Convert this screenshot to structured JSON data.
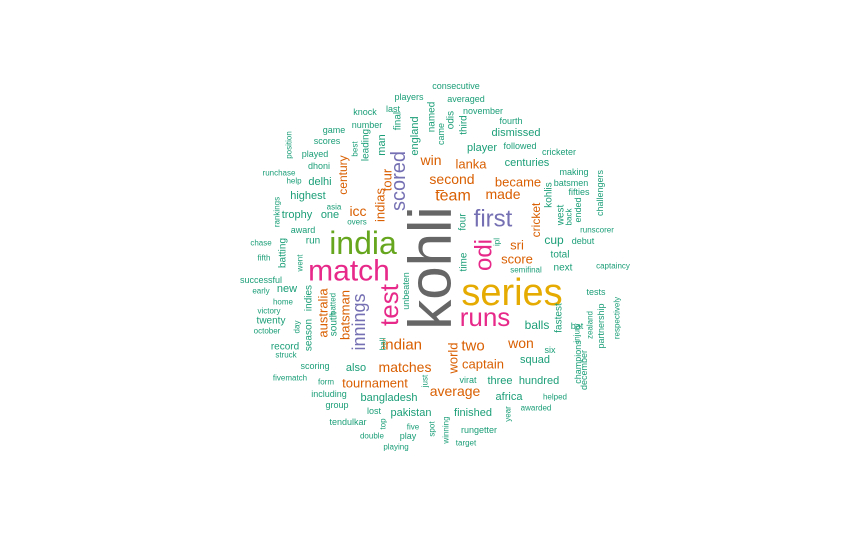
{
  "palette": {
    "gray": "#666666",
    "gold": "#e6ab02",
    "magenta": "#e7298a",
    "green": "#66a61e",
    "purple": "#7570b3",
    "orange": "#d95f02",
    "teal": "#1b9e77"
  },
  "words": [
    {
      "text": "kohli",
      "color": "gray"
    },
    {
      "text": "series",
      "color": "gold"
    },
    {
      "text": "india",
      "color": "green"
    },
    {
      "text": "match",
      "color": "magenta"
    },
    {
      "text": "runs",
      "color": "magenta"
    },
    {
      "text": "test",
      "color": "magenta"
    },
    {
      "text": "first",
      "color": "purple"
    },
    {
      "text": "odi",
      "color": "magenta"
    },
    {
      "text": "scored",
      "color": "purple"
    },
    {
      "text": "innings",
      "color": "purple"
    },
    {
      "text": "indian",
      "color": "orange"
    },
    {
      "text": "matches",
      "color": "orange"
    },
    {
      "text": "team",
      "color": "orange"
    },
    {
      "text": "second",
      "color": "orange"
    },
    {
      "text": "average",
      "color": "orange"
    },
    {
      "text": "tournament",
      "color": "orange"
    },
    {
      "text": "captain",
      "color": "orange"
    },
    {
      "text": "two",
      "color": "orange"
    },
    {
      "text": "won",
      "color": "orange"
    },
    {
      "text": "score",
      "color": "orange"
    },
    {
      "text": "made",
      "color": "orange"
    },
    {
      "text": "became",
      "color": "orange"
    },
    {
      "text": "lanka",
      "color": "orange"
    },
    {
      "text": "win",
      "color": "orange"
    },
    {
      "text": "sri",
      "color": "orange"
    },
    {
      "text": "icc",
      "color": "orange"
    },
    {
      "text": "tour",
      "color": "orange"
    },
    {
      "text": "indias",
      "color": "orange"
    },
    {
      "text": "batsman",
      "color": "orange"
    },
    {
      "text": "australia",
      "color": "orange"
    },
    {
      "text": "world",
      "color": "orange"
    },
    {
      "text": "cricket",
      "color": "orange"
    },
    {
      "text": "century",
      "color": "orange"
    },
    {
      "text": "cup",
      "color": "teal"
    },
    {
      "text": "balls",
      "color": "teal"
    },
    {
      "text": "squad",
      "color": "teal"
    },
    {
      "text": "hundred",
      "color": "teal"
    },
    {
      "text": "three",
      "color": "teal"
    },
    {
      "text": "africa",
      "color": "teal"
    },
    {
      "text": "finished",
      "color": "teal"
    },
    {
      "text": "pakistan",
      "color": "teal"
    },
    {
      "text": "bangladesh",
      "color": "teal"
    },
    {
      "text": "also",
      "color": "teal"
    },
    {
      "text": "centuries",
      "color": "teal"
    },
    {
      "text": "dismissed",
      "color": "teal"
    },
    {
      "text": "player",
      "color": "teal"
    },
    {
      "text": "england",
      "color": "teal"
    },
    {
      "text": "man",
      "color": "teal"
    },
    {
      "text": "leading",
      "color": "teal"
    },
    {
      "text": "highest",
      "color": "teal"
    },
    {
      "text": "delhi",
      "color": "teal"
    },
    {
      "text": "trophy",
      "color": "teal"
    },
    {
      "text": "one",
      "color": "teal"
    },
    {
      "text": "run",
      "color": "teal"
    },
    {
      "text": "batting",
      "color": "teal"
    },
    {
      "text": "new",
      "color": "teal"
    },
    {
      "text": "twenty",
      "color": "teal"
    },
    {
      "text": "record",
      "color": "teal"
    },
    {
      "text": "indies",
      "color": "teal"
    },
    {
      "text": "south",
      "color": "teal"
    },
    {
      "text": "season",
      "color": "teal"
    },
    {
      "text": "kohlis",
      "color": "teal"
    },
    {
      "text": "west",
      "color": "teal"
    },
    {
      "text": "fastest",
      "color": "teal"
    },
    {
      "text": "next",
      "color": "teal"
    },
    {
      "text": "total",
      "color": "teal"
    },
    {
      "text": "debut",
      "color": "teal"
    },
    {
      "text": "time",
      "color": "teal"
    },
    {
      "text": "four",
      "color": "teal"
    },
    {
      "text": "final",
      "color": "teal"
    },
    {
      "text": "named",
      "color": "teal"
    },
    {
      "text": "odis",
      "color": "teal"
    },
    {
      "text": "third",
      "color": "teal"
    },
    {
      "text": "came",
      "color": "teal"
    },
    {
      "text": "scores",
      "color": "teal"
    },
    {
      "text": "game",
      "color": "teal"
    },
    {
      "text": "number",
      "color": "teal"
    },
    {
      "text": "knock",
      "color": "teal"
    },
    {
      "text": "last",
      "color": "teal"
    },
    {
      "text": "players",
      "color": "teal"
    },
    {
      "text": "consecutive",
      "color": "teal"
    },
    {
      "text": "averaged",
      "color": "teal"
    },
    {
      "text": "november",
      "color": "teal"
    },
    {
      "text": "fourth",
      "color": "teal"
    },
    {
      "text": "followed",
      "color": "teal"
    },
    {
      "text": "cricketer",
      "color": "teal"
    },
    {
      "text": "making",
      "color": "teal"
    },
    {
      "text": "batsmen",
      "color": "teal"
    },
    {
      "text": "fifties",
      "color": "teal"
    },
    {
      "text": "challengers",
      "color": "teal"
    },
    {
      "text": "runscorer",
      "color": "teal"
    },
    {
      "text": "captaincy",
      "color": "teal"
    },
    {
      "text": "semifinal",
      "color": "teal"
    },
    {
      "text": "tests",
      "color": "teal"
    },
    {
      "text": "partnership",
      "color": "teal"
    },
    {
      "text": "respectively",
      "color": "teal"
    },
    {
      "text": "injury",
      "color": "teal"
    },
    {
      "text": "zealand",
      "color": "teal"
    },
    {
      "text": "champions",
      "color": "teal"
    },
    {
      "text": "december",
      "color": "teal"
    },
    {
      "text": "six",
      "color": "teal"
    },
    {
      "text": "bat",
      "color": "teal"
    },
    {
      "text": "ended",
      "color": "teal"
    },
    {
      "text": "back",
      "color": "teal"
    },
    {
      "text": "ipl",
      "color": "teal"
    },
    {
      "text": "best",
      "color": "teal"
    },
    {
      "text": "played",
      "color": "teal"
    },
    {
      "text": "dhoni",
      "color": "teal"
    },
    {
      "text": "position",
      "color": "teal"
    },
    {
      "text": "runchase",
      "color": "teal"
    },
    {
      "text": "help",
      "color": "teal"
    },
    {
      "text": "asia",
      "color": "teal"
    },
    {
      "text": "overs",
      "color": "teal"
    },
    {
      "text": "rankings",
      "color": "teal"
    },
    {
      "text": "award",
      "color": "teal"
    },
    {
      "text": "chase",
      "color": "teal"
    },
    {
      "text": "fifth",
      "color": "teal"
    },
    {
      "text": "successful",
      "color": "teal"
    },
    {
      "text": "early",
      "color": "teal"
    },
    {
      "text": "home",
      "color": "teal"
    },
    {
      "text": "victory",
      "color": "teal"
    },
    {
      "text": "day",
      "color": "teal"
    },
    {
      "text": "october",
      "color": "teal"
    },
    {
      "text": "struck",
      "color": "teal"
    },
    {
      "text": "went",
      "color": "teal"
    },
    {
      "text": "batted",
      "color": "teal"
    },
    {
      "text": "unbeaten",
      "color": "teal"
    },
    {
      "text": "ball",
      "color": "teal"
    },
    {
      "text": "scoring",
      "color": "teal"
    },
    {
      "text": "fivematch",
      "color": "teal"
    },
    {
      "text": "form",
      "color": "teal"
    },
    {
      "text": "including",
      "color": "teal"
    },
    {
      "text": "group",
      "color": "teal"
    },
    {
      "text": "lost",
      "color": "teal"
    },
    {
      "text": "tendulkar",
      "color": "teal"
    },
    {
      "text": "top",
      "color": "teal"
    },
    {
      "text": "double",
      "color": "teal"
    },
    {
      "text": "playing",
      "color": "teal"
    },
    {
      "text": "play",
      "color": "teal"
    },
    {
      "text": "five",
      "color": "teal"
    },
    {
      "text": "spot",
      "color": "teal"
    },
    {
      "text": "winning",
      "color": "teal"
    },
    {
      "text": "rungetter",
      "color": "teal"
    },
    {
      "text": "target",
      "color": "teal"
    },
    {
      "text": "year",
      "color": "teal"
    },
    {
      "text": "awarded",
      "color": "teal"
    },
    {
      "text": "helped",
      "color": "teal"
    },
    {
      "text": "virat",
      "color": "teal"
    },
    {
      "text": "just",
      "color": "teal"
    },
    {
      "text": "–",
      "color": "orange"
    }
  ]
}
